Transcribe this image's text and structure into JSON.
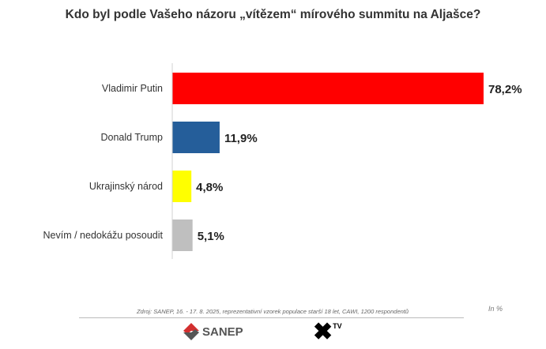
{
  "chart_data": {
    "type": "bar",
    "orientation": "horizontal",
    "title": "Kdo byl podle Vašeho názoru „vítězem“ mírového summitu na Aljašce?",
    "categories": [
      "Vladimir Putin",
      "Donald Trump",
      "Ukrajinský národ",
      "Nevím / nedokážu posoudit"
    ],
    "values": [
      78.2,
      11.9,
      4.8,
      5.1
    ],
    "data_labels": [
      "78,2%",
      "11,9%",
      "4,8%",
      "5,1%"
    ],
    "colors": [
      "#ff0000",
      "#255e9a",
      "#ffff00",
      "#bfbfbf"
    ],
    "xlim": [
      0,
      80
    ],
    "unit": "In %",
    "grid": false
  },
  "footer": {
    "source": "Zdroj: SANEP, 16. - 17. 8. 2025, reprezentativní vzorek populace starší 18 let, CAWI, 1200 respondentů",
    "logos": [
      {
        "name": "SANEP",
        "text": "SANEP"
      },
      {
        "name": "XTV",
        "text": "TV"
      }
    ]
  }
}
